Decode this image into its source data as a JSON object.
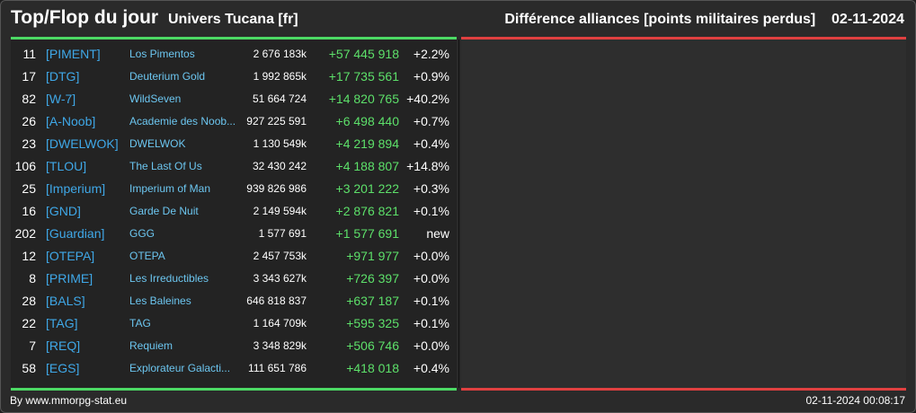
{
  "header": {
    "title": "Top/Flop du jour",
    "subtitle": "Univers Tucana [fr]",
    "right_title": "Différence alliances [points militaires perdus]",
    "date": "02-11-2024"
  },
  "rows": [
    {
      "rank": "11",
      "tag": "[PIMENT]",
      "name": "Los Pimentos",
      "points": "2 676 183k",
      "diff": "+57 445 918",
      "pct": "+2.2%"
    },
    {
      "rank": "17",
      "tag": "[DTG]",
      "name": "Deuterium Gold",
      "points": "1 992 865k",
      "diff": "+17 735 561",
      "pct": "+0.9%"
    },
    {
      "rank": "82",
      "tag": "[W-7]",
      "name": "WildSeven",
      "points": "51 664 724",
      "diff": "+14 820 765",
      "pct": "+40.2%"
    },
    {
      "rank": "26",
      "tag": "[A-Noob]",
      "name": "Academie des Noob...",
      "points": "927 225 591",
      "diff": "+6 498 440",
      "pct": "+0.7%"
    },
    {
      "rank": "23",
      "tag": "[DWELWOK]",
      "name": "DWELWOK",
      "points": "1 130 549k",
      "diff": "+4 219 894",
      "pct": "+0.4%"
    },
    {
      "rank": "106",
      "tag": "[TLOU]",
      "name": "The Last Of Us",
      "points": "32 430 242",
      "diff": "+4 188 807",
      "pct": "+14.8%"
    },
    {
      "rank": "25",
      "tag": "[Imperium]",
      "name": "Imperium of Man",
      "points": "939 826 986",
      "diff": "+3 201 222",
      "pct": "+0.3%"
    },
    {
      "rank": "16",
      "tag": "[GND]",
      "name": "Garde De Nuit",
      "points": "2 149 594k",
      "diff": "+2 876 821",
      "pct": "+0.1%"
    },
    {
      "rank": "202",
      "tag": "[Guardian]",
      "name": "GGG",
      "points": "1 577 691",
      "diff": "+1 577 691",
      "pct": "new"
    },
    {
      "rank": "12",
      "tag": "[OTEPA]",
      "name": "OTEPA",
      "points": "2 457 753k",
      "diff": "+971 977",
      "pct": "+0.0%"
    },
    {
      "rank": "8",
      "tag": "[PRIME]",
      "name": "Les Irreductibles",
      "points": "3 343 627k",
      "diff": "+726 397",
      "pct": "+0.0%"
    },
    {
      "rank": "28",
      "tag": "[BALS]",
      "name": "Les Baleines",
      "points": "646 818 837",
      "diff": "+637 187",
      "pct": "+0.1%"
    },
    {
      "rank": "22",
      "tag": "[TAG]",
      "name": "TAG",
      "points": "1 164 709k",
      "diff": "+595 325",
      "pct": "+0.1%"
    },
    {
      "rank": "7",
      "tag": "[REQ]",
      "name": "Requiem",
      "points": "3 348 829k",
      "diff": "+506 746",
      "pct": "+0.0%"
    },
    {
      "rank": "58",
      "tag": "[EGS]",
      "name": "Explorateur Galacti...",
      "points": "111 651 786",
      "diff": "+418 018",
      "pct": "+0.4%"
    }
  ],
  "footer": {
    "credit": "By www.mmorpg-stat.eu",
    "timestamp": "02-11-2024 00:08:17"
  },
  "colors": {
    "top_accent": "#4cd964",
    "flop_accent": "#e04040",
    "tag": "#3fa8e8",
    "name": "#6cc6f0",
    "diff": "#5de06a"
  }
}
